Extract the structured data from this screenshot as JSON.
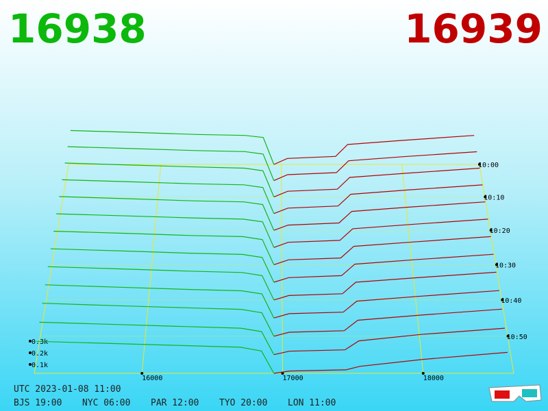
{
  "chart_data": {
    "type": "depth3d",
    "best_bid": 16938,
    "best_ask": 16939,
    "utc": "UTC 2023-01-08 11:00",
    "zones": [
      "BJS 19:00",
      "NYC 06:00",
      "PAR 12:00",
      "TYO 20:00",
      "LON 11:00"
    ],
    "xlim": [
      15234,
      18644
    ],
    "xticks": [
      16000,
      17000,
      18000
    ],
    "ylim": [
      0,
      400
    ],
    "yticks": [
      {
        "value": 100,
        "label": "0.1k"
      },
      {
        "value": 200,
        "label": "0.2k"
      },
      {
        "value": 300,
        "label": "0.3k"
      }
    ],
    "tlim": [
      0,
      60
    ],
    "tticks": [
      {
        "value": 0,
        "label": "10:00"
      },
      {
        "value": 10,
        "label": "10:10"
      },
      {
        "value": 20,
        "label": "10:20"
      },
      {
        "value": 30,
        "label": "10:30"
      },
      {
        "value": 40,
        "label": "10:40"
      },
      {
        "value": 50,
        "label": "10:50"
      }
    ],
    "times": [
      0,
      5,
      10,
      15,
      20,
      25,
      30,
      35,
      40,
      45,
      50,
      55,
      60
    ],
    "bids": {
      "color": "#14b414",
      "prices": [
        15250,
        15800,
        16300,
        16700,
        16850,
        16938
      ],
      "values": [
        [
          340,
          320,
          300,
          290,
          270,
          0
        ],
        [
          335,
          315,
          296,
          286,
          262,
          0
        ],
        [
          330,
          310,
          292,
          280,
          255,
          0
        ],
        [
          325,
          305,
          286,
          276,
          250,
          0
        ],
        [
          320,
          300,
          280,
          270,
          245,
          0
        ],
        [
          315,
          295,
          276,
          265,
          240,
          0
        ],
        [
          310,
          290,
          270,
          260,
          232,
          0
        ],
        [
          305,
          285,
          265,
          254,
          226,
          0
        ],
        [
          300,
          280,
          260,
          248,
          220,
          0
        ],
        [
          295,
          274,
          254,
          242,
          214,
          0
        ],
        [
          290,
          268,
          250,
          236,
          206,
          0
        ],
        [
          282,
          262,
          244,
          230,
          200,
          0
        ],
        [
          275,
          256,
          238,
          224,
          192,
          0
        ]
      ]
    },
    "asks": {
      "color": "#b40000",
      "prices": [
        16939,
        17050,
        17450,
        17550,
        18000,
        18600
      ],
      "values": [
        [
          0,
          60,
          80,
          200,
          240,
          290
        ],
        [
          0,
          58,
          78,
          195,
          236,
          285
        ],
        [
          0,
          55,
          75,
          190,
          230,
          280
        ],
        [
          0,
          52,
          72,
          185,
          226,
          275
        ],
        [
          0,
          50,
          70,
          180,
          220,
          270
        ],
        [
          0,
          48,
          66,
          175,
          215,
          265
        ],
        [
          0,
          45,
          62,
          170,
          210,
          260
        ],
        [
          0,
          42,
          60,
          165,
          205,
          255
        ],
        [
          0,
          40,
          56,
          160,
          200,
          250
        ],
        [
          0,
          38,
          52,
          150,
          192,
          244
        ],
        [
          0,
          35,
          48,
          140,
          185,
          238
        ],
        [
          0,
          30,
          42,
          120,
          176,
          230
        ],
        [
          0,
          20,
          30,
          60,
          120,
          180
        ]
      ]
    },
    "grid_color": "#e8e830"
  }
}
